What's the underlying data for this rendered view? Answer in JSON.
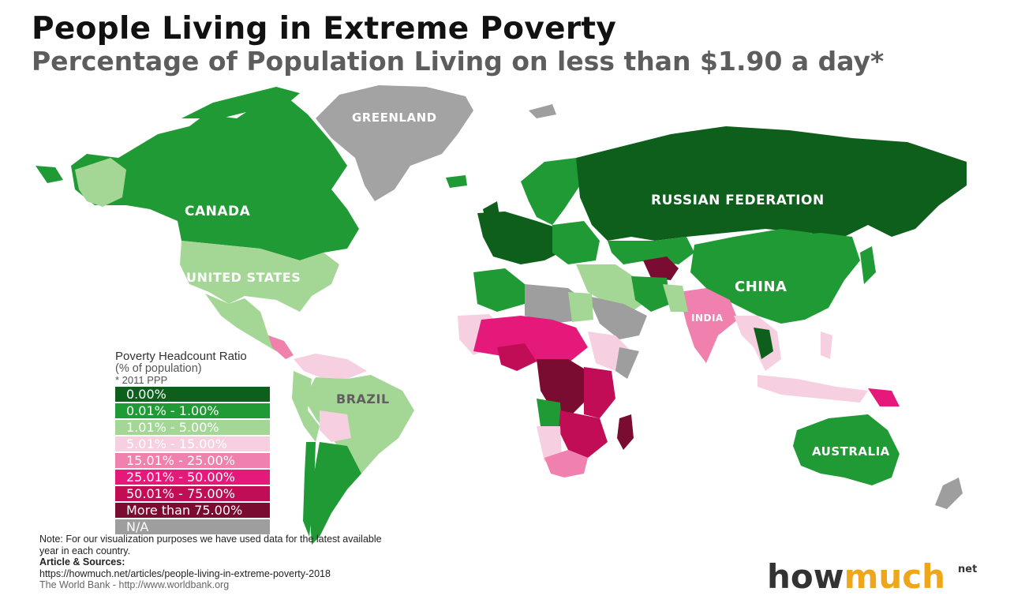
{
  "header": {
    "title": "People Living in Extreme Poverty",
    "subtitle": "Percentage of Population Living on less than $1.90 a day*"
  },
  "map_labels": {
    "greenland": "GREENLAND",
    "canada": "CANADA",
    "united_states": "UNITED STATES",
    "russian_federation": "RUSSIAN FEDERATION",
    "china": "CHINA",
    "india": "INDIA",
    "brazil": "BRAZIL",
    "australia": "AUSTRALIA"
  },
  "legend": {
    "title": "Poverty Headcount Ratio",
    "subtitle": "(% of population)",
    "note": "* 2011 PPP",
    "items": [
      {
        "label": "0.00%",
        "color": "#0e5f1c"
      },
      {
        "label": "0.01% - 1.00%",
        "color": "#1f9a35"
      },
      {
        "label": "1.01% - 5.00%",
        "color": "#a4d795"
      },
      {
        "label": "5.01% - 15.00%",
        "color": "#f6cfe0"
      },
      {
        "label": "15.01% - 25.00%",
        "color": "#f080ae"
      },
      {
        "label": "25.01% - 50.00%",
        "color": "#e5197a"
      },
      {
        "label": "50.01% - 75.00%",
        "color": "#c10d55"
      },
      {
        "label": "More than 75.00%",
        "color": "#7a0c31"
      },
      {
        "label": "N/A",
        "color": "#9e9e9e"
      }
    ]
  },
  "footer": {
    "note": "Note: For our visualization purposes we have used data for the latest available year in each country.",
    "sources_heading": "Article & Sources:",
    "article_url": "https://howmuch.net/articles/people-living-in-extreme-poverty-2018",
    "worldbank": "The World Bank - http://www.worldbank.org"
  },
  "brand": {
    "how": "how",
    "much": "much",
    "net": "net"
  }
}
